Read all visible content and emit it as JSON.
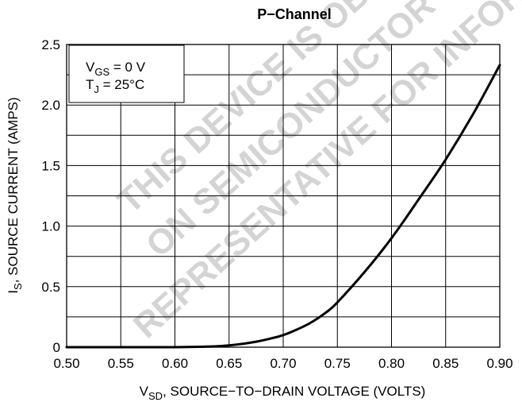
{
  "chart_data": {
    "type": "line",
    "title": "P−Channel",
    "xlabel": {
      "main": "V",
      "sub": "SD",
      "rest": ", SOURCE−TO−DRAIN VOLTAGE (VOLTS)"
    },
    "ylabel": {
      "main": "I",
      "sub": "S",
      "rest": ", SOURCE CURRENT (AMPS)"
    },
    "xlim": [
      0.5,
      0.9
    ],
    "ylim": [
      0,
      2.5
    ],
    "x_ticks": [
      "0.50",
      "0.55",
      "0.60",
      "0.65",
      "0.70",
      "0.75",
      "0.80",
      "0.85",
      "0.90"
    ],
    "y_ticks": [
      "0",
      "0.5",
      "1.0",
      "1.5",
      "2.0",
      "2.5"
    ],
    "grid": true,
    "legend": {
      "placement": "top-left",
      "line1": {
        "main": "V",
        "sub": "GS",
        "rest": " = 0 V"
      },
      "line2": {
        "main": "T",
        "sub": "J",
        "rest": " = 25°C"
      }
    },
    "series": [
      {
        "x": [
          0.5,
          0.55,
          0.6,
          0.625,
          0.64,
          0.65,
          0.66,
          0.675,
          0.69,
          0.7,
          0.71,
          0.725,
          0.74,
          0.75,
          0.775,
          0.8,
          0.825,
          0.85,
          0.875,
          0.9
        ],
        "y": [
          0,
          0,
          0,
          0.003,
          0.008,
          0.015,
          0.025,
          0.045,
          0.075,
          0.1,
          0.135,
          0.2,
          0.29,
          0.37,
          0.62,
          0.9,
          1.22,
          1.55,
          1.92,
          2.33
        ]
      }
    ],
    "colors": {
      "line": "#000000",
      "grid": "#000000",
      "watermark": "#d0d0d0"
    }
  },
  "watermark": {
    "lines": [
      "THIS DEVICE IS OBSOLETE",
      "ON SEMICONDUCTOR",
      "REPRESENTATIVE FOR INFORMATION"
    ]
  }
}
